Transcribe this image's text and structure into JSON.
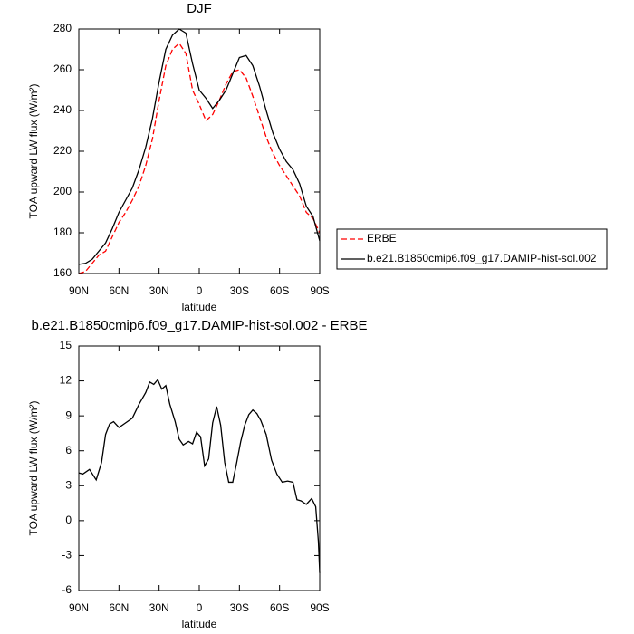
{
  "chart_data": [
    {
      "type": "line",
      "title": "DJF",
      "xlabel": "latitude",
      "ylabel": "TOA upward LW flux (W/m²)",
      "x": [
        90,
        85,
        80,
        75,
        70,
        65,
        60,
        55,
        50,
        45,
        40,
        35,
        30,
        25,
        20,
        15,
        10,
        5,
        0,
        -5,
        -10,
        -15,
        -20,
        -25,
        -30,
        -35,
        -40,
        -45,
        -50,
        -55,
        -60,
        -65,
        -70,
        -75,
        -80,
        -85,
        -90
      ],
      "series": [
        {
          "name": "ERBE",
          "color": "#ff0000",
          "dashed": true,
          "values": [
            160,
            161,
            165,
            169,
            171,
            178,
            185,
            190,
            196,
            203,
            213,
            226,
            245,
            262,
            270,
            273,
            268,
            250,
            243,
            235,
            238,
            245,
            253,
            259,
            260,
            256,
            247,
            237,
            227,
            219,
            213,
            208,
            203,
            198,
            190,
            187,
            180
          ]
        },
        {
          "name": "b.e21.B1850cmip6.f09_g17.DAMIP-hist-sol.002",
          "color": "#000000",
          "dashed": false,
          "values": [
            164.5,
            165,
            167,
            171,
            175,
            182,
            190,
            196,
            202,
            211,
            222,
            236,
            254,
            270,
            277,
            280,
            278,
            263,
            250,
            246,
            241,
            245,
            250,
            258,
            266,
            267,
            262,
            252,
            240,
            229,
            221,
            215,
            211,
            204,
            193,
            188,
            176
          ]
        }
      ],
      "xlim": [
        90,
        -90
      ],
      "xticks": [
        {
          "value": 90,
          "label": "90N"
        },
        {
          "value": 60,
          "label": "60N"
        },
        {
          "value": 30,
          "label": "30N"
        },
        {
          "value": 0,
          "label": "0"
        },
        {
          "value": -30,
          "label": "30S"
        },
        {
          "value": -60,
          "label": "60S"
        },
        {
          "value": -90,
          "label": "90S"
        }
      ],
      "ylim": [
        160,
        280
      ],
      "yticks": [
        160,
        180,
        200,
        220,
        240,
        260,
        280
      ],
      "legend": "right"
    },
    {
      "type": "line",
      "title": "b.e21.B1850cmip6.f09_g17.DAMIP-hist-sol.002 - ERBE",
      "xlabel": "latitude",
      "ylabel": "TOA upward LW flux (W/m²)",
      "x": [
        90,
        87,
        82,
        77,
        73,
        70,
        67,
        64,
        60,
        55,
        50,
        45,
        40,
        37,
        34,
        31,
        28,
        25,
        22,
        18,
        15,
        12,
        8,
        5,
        2,
        -1,
        -4,
        -7,
        -10,
        -13,
        -16,
        -19,
        -22,
        -25,
        -28,
        -31,
        -34,
        -37,
        -40,
        -43,
        -46,
        -50,
        -54,
        -58,
        -62,
        -66,
        -70,
        -73,
        -76,
        -80,
        -84,
        -87,
        -89,
        -90
      ],
      "series": [
        {
          "color": "#000000",
          "dashed": false,
          "values": [
            4.1,
            4.0,
            4.4,
            3.5,
            5,
            7.4,
            8.3,
            8.5,
            8.0,
            8.4,
            8.8,
            10,
            11,
            11.9,
            11.7,
            12.1,
            11.3,
            11.6,
            10,
            8.5,
            7,
            6.5,
            6.8,
            6.6,
            7.6,
            7.2,
            4.7,
            5.3,
            8.4,
            9.8,
            8.2,
            5,
            3.3,
            3.3,
            5,
            6.8,
            8.2,
            9.1,
            9.5,
            9.2,
            8.6,
            7.4,
            5.2,
            4,
            3.3,
            3.4,
            3.3,
            1.8,
            1.7,
            1.4,
            1.9,
            1.2,
            -1.8,
            -4.5
          ]
        }
      ],
      "xlim": [
        90,
        -90
      ],
      "xticks": [
        {
          "value": 90,
          "label": "90N"
        },
        {
          "value": 60,
          "label": "60N"
        },
        {
          "value": 30,
          "label": "30N"
        },
        {
          "value": 0,
          "label": "0"
        },
        {
          "value": -30,
          "label": "30S"
        },
        {
          "value": -60,
          "label": "60S"
        },
        {
          "value": -90,
          "label": "90S"
        }
      ],
      "ylim": [
        -6,
        15
      ],
      "yticks": [
        -6,
        -3,
        0,
        3,
        6,
        9,
        12,
        15
      ]
    }
  ]
}
